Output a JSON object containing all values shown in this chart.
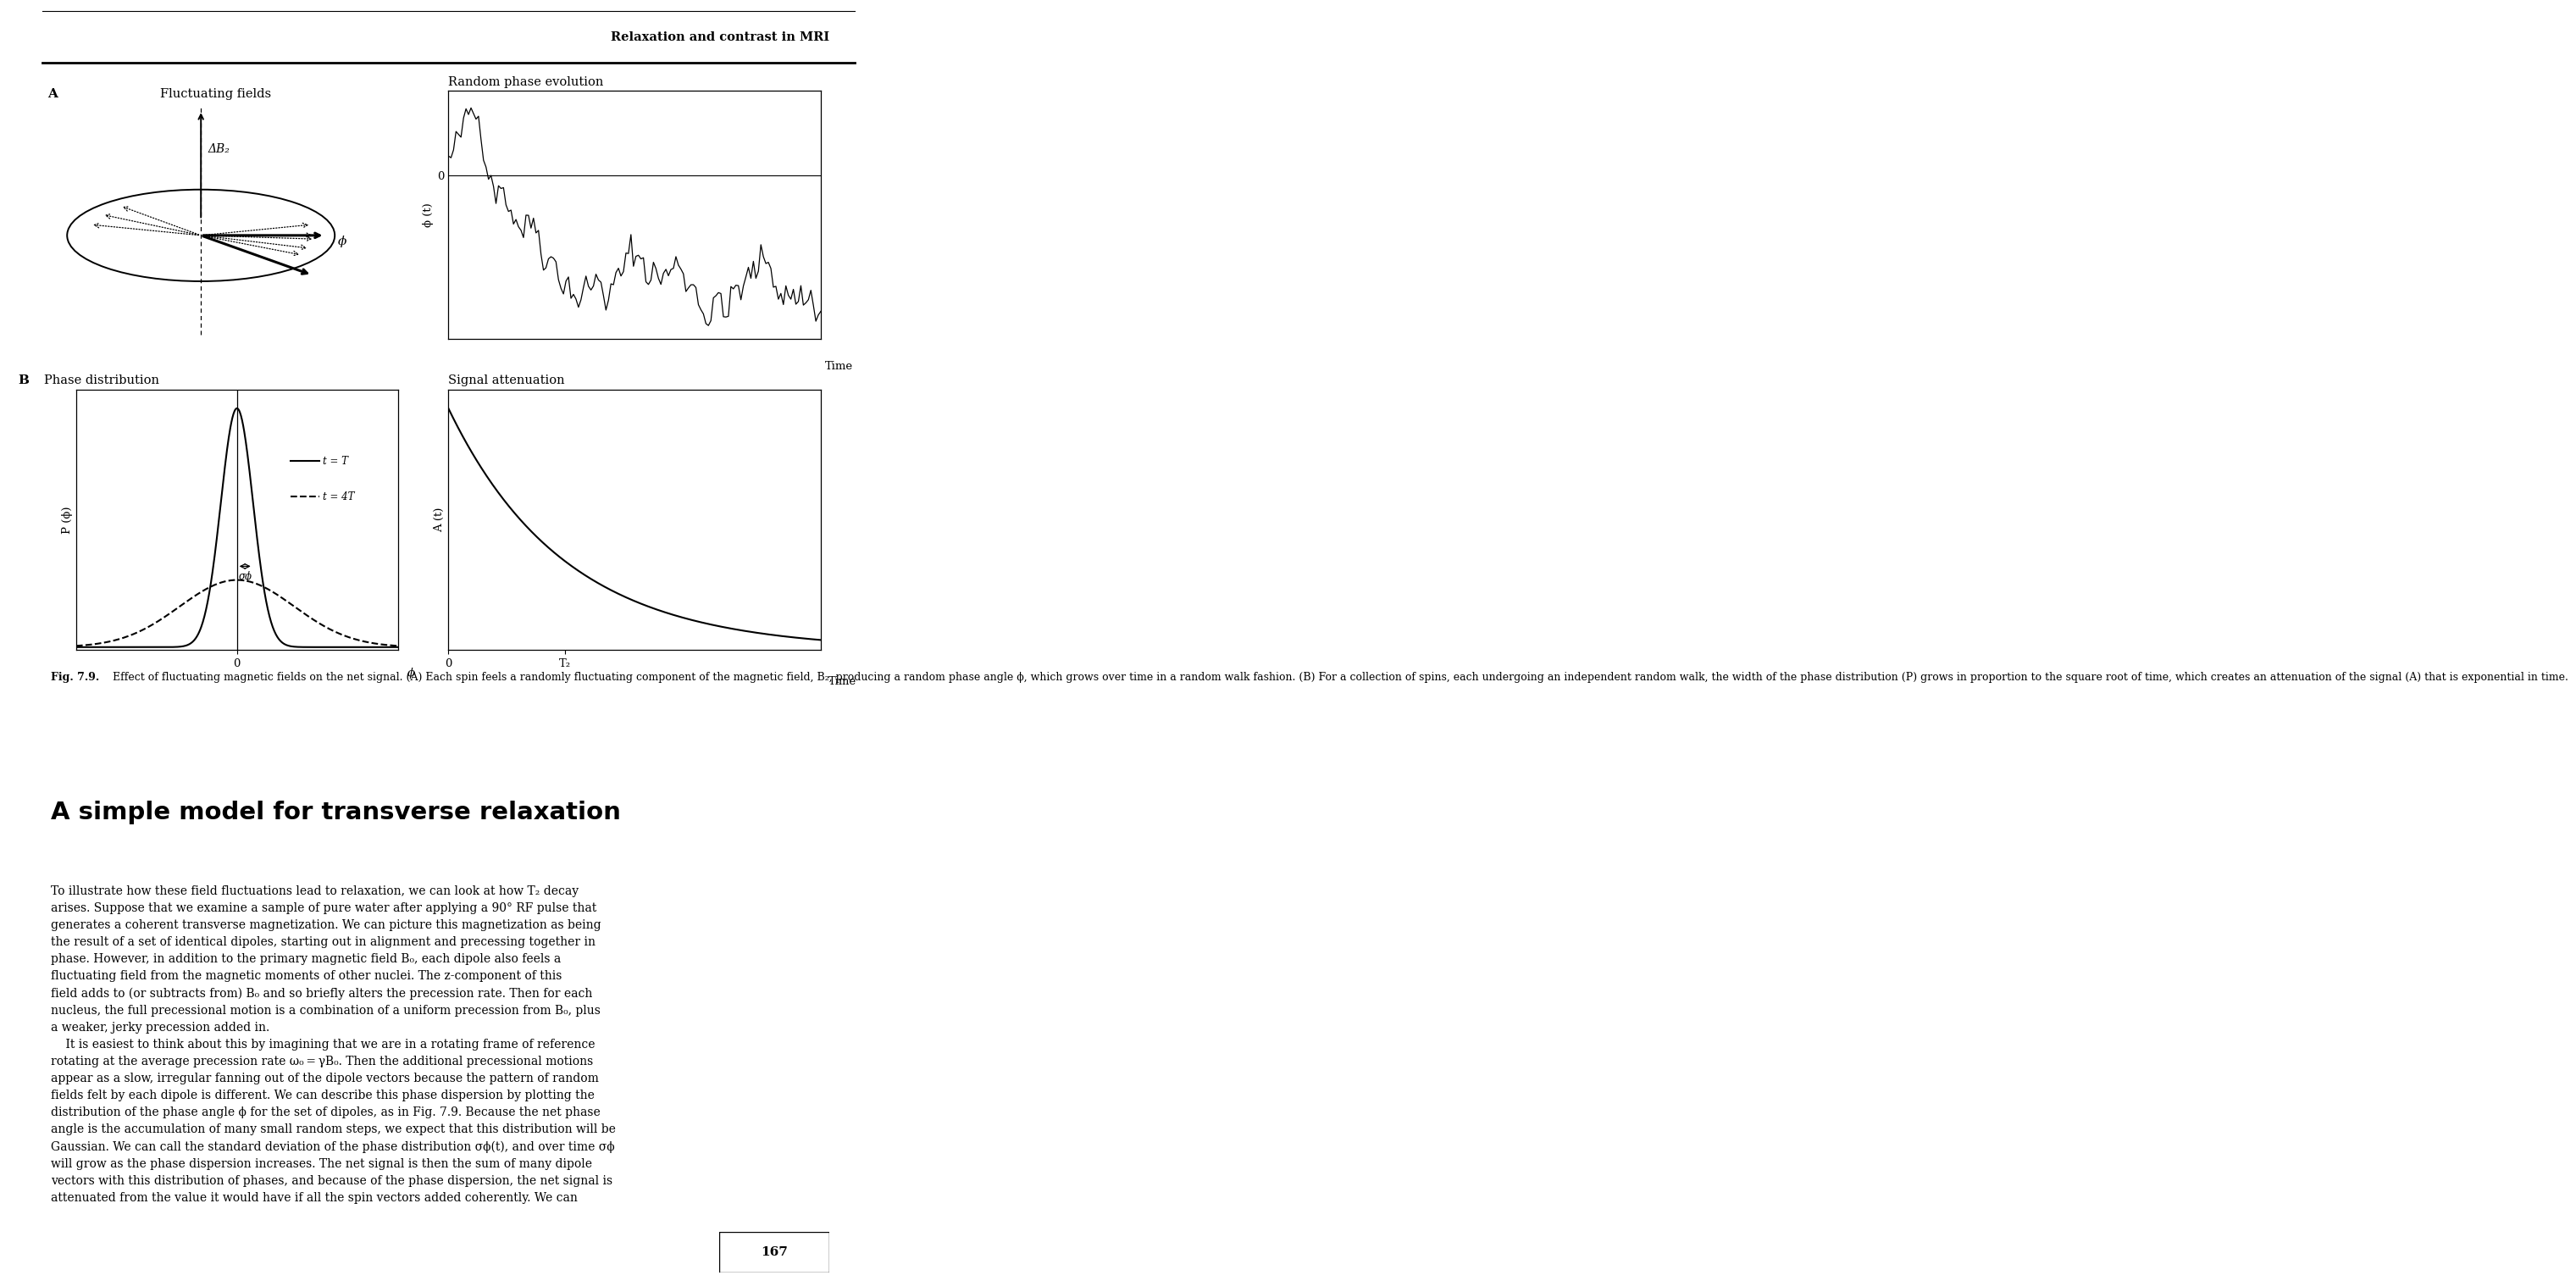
{
  "header_text": "Relaxation and contrast in MRI",
  "panel_A_label": "A",
  "panel_B_label": "B",
  "fluctuating_fields_title": "Fluctuating fields",
  "random_phase_title": "Random phase evolution",
  "phase_dist_title": "Phase distribution",
  "signal_att_title": "Signal attenuation",
  "delta_Bz_label": "ΔB₂",
  "phi_label": "ϕ",
  "phi_axis_label": "ϕ (t)",
  "time_label": "Time",
  "zero_label": "0",
  "P_phi_label": "P (ϕ)",
  "A_t_label": "A (t)",
  "t_T_label": "t = T",
  "t_4T_label": "t = 4T",
  "sigma_phi_label": "σϕ",
  "T2_label": "T₂",
  "fig_caption_bold": "Fig. 7.9.",
  "fig_caption_normal": " Effect of fluctuating magnetic fields on the net signal. (A) Each spin feels a randomly fluctuating component of the magnetic field, B₂, producing a random phase angle ϕ, which grows over time in a random walk fashion. (B) For a collection of spins, each undergoing an independent random walk, the width of the phase distribution (P) grows in proportion to the square root of time, which creates an attenuation of the signal (A) that is exponential in time.",
  "section_title": "A simple model for transverse relaxation",
  "body_para1_lines": [
    "To illustrate how these field fluctuations lead to relaxation, we can look at how T₂ decay",
    "arises. Suppose that we examine a sample of pure water after applying a 90° RF pulse that",
    "generates a coherent transverse magnetization. We can picture this magnetization as being",
    "the result of a set of identical dipoles, starting out in alignment and precessing together in",
    "phase. However, in addition to the primary magnetic field B₀, each dipole also feels a",
    "fluctuating field from the magnetic moments of other nuclei. The z-component of this",
    "field adds to (or subtracts from) B₀ and so briefly alters the precession rate. Then for each",
    "nucleus, the full precessional motion is a combination of a uniform precession from B₀, plus",
    "a weaker, jerky precession added in."
  ],
  "body_para2_lines": [
    "    It is easiest to think about this by imagining that we are in a rotating frame of reference",
    "rotating at the average precession rate ω₀ = γB₀. Then the additional precessional motions",
    "appear as a slow, irregular fanning out of the dipole vectors because the pattern of random",
    "fields felt by each dipole is different. We can describe this phase dispersion by plotting the",
    "distribution of the phase angle ϕ for the set of dipoles, as in Fig. 7.9. Because the net phase",
    "angle is the accumulation of many small random steps, we expect that this distribution will be",
    "Gaussian. We can call the standard deviation of the phase distribution σϕ(t), and over time σϕ",
    "will grow as the phase dispersion increases. The net signal is then the sum of many dipole",
    "vectors with this distribution of phases, and because of the phase dispersion, the net signal is",
    "attenuated from the value it would have if all the spin vectors added coherently. We can"
  ],
  "page_number": "167",
  "bg": "#ffffff",
  "fg": "#000000",
  "link_color": "#008080"
}
